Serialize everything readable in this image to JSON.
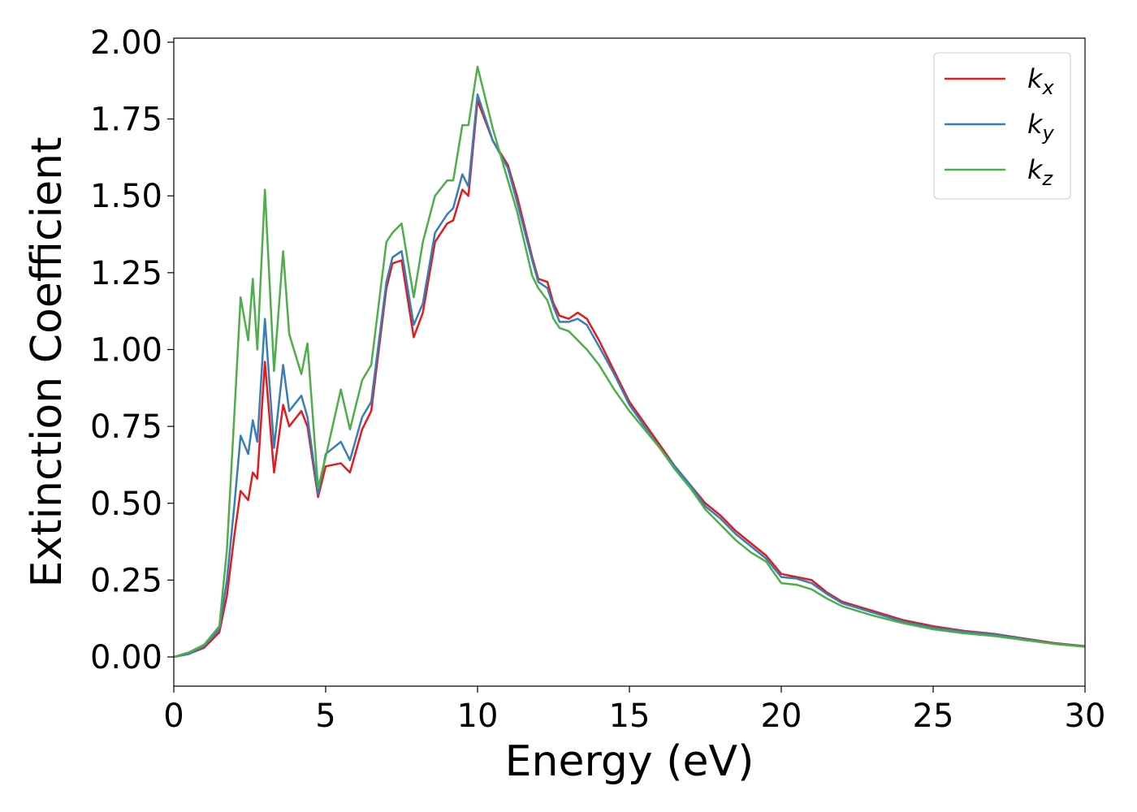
{
  "chart_data": {
    "type": "line",
    "x_label": "Energy (eV)",
    "y_label": "Extinction Coefficient",
    "x": [
      0,
      0.5,
      1,
      1.5,
      1.75,
      2,
      2.2,
      2.45,
      2.6,
      2.75,
      3,
      3.3,
      3.6,
      3.8,
      4.2,
      4.4,
      4.75,
      5,
      5.5,
      5.8,
      6.2,
      6.5,
      7,
      7.2,
      7.5,
      7.9,
      8.2,
      8.6,
      9,
      9.2,
      9.5,
      9.7,
      10,
      10.5,
      11,
      11.3,
      11.8,
      12,
      12.3,
      12.5,
      12.7,
      13,
      13.3,
      13.6,
      14,
      14.5,
      15,
      15.5,
      16,
      16.5,
      17,
      17.5,
      18,
      18.5,
      19,
      19.5,
      20,
      20.5,
      21,
      21.5,
      22,
      23,
      24,
      25,
      26,
      27,
      28,
      29,
      30
    ],
    "series": [
      {
        "name": "kx",
        "color": "#e41a1c",
        "values": [
          0,
          0.01,
          0.03,
          0.08,
          0.2,
          0.4,
          0.54,
          0.51,
          0.6,
          0.58,
          0.96,
          0.6,
          0.82,
          0.75,
          0.8,
          0.75,
          0.52,
          0.62,
          0.63,
          0.6,
          0.74,
          0.8,
          1.2,
          1.28,
          1.29,
          1.04,
          1.12,
          1.35,
          1.41,
          1.42,
          1.52,
          1.5,
          1.81,
          1.68,
          1.6,
          1.5,
          1.3,
          1.23,
          1.22,
          1.15,
          1.11,
          1.1,
          1.12,
          1.1,
          1.03,
          0.93,
          0.83,
          0.76,
          0.69,
          0.62,
          0.56,
          0.5,
          0.46,
          0.41,
          0.37,
          0.33,
          0.27,
          0.26,
          0.25,
          0.21,
          0.18,
          0.15,
          0.12,
          0.1,
          0.085,
          0.075,
          0.06,
          0.045,
          0.035
        ]
      },
      {
        "name": "ky",
        "color": "#377eb8",
        "values": [
          0,
          0.01,
          0.035,
          0.09,
          0.25,
          0.5,
          0.72,
          0.66,
          0.77,
          0.7,
          1.1,
          0.68,
          0.95,
          0.8,
          0.85,
          0.78,
          0.53,
          0.66,
          0.7,
          0.64,
          0.78,
          0.83,
          1.22,
          1.3,
          1.32,
          1.08,
          1.15,
          1.38,
          1.44,
          1.46,
          1.57,
          1.53,
          1.83,
          1.68,
          1.59,
          1.48,
          1.29,
          1.22,
          1.2,
          1.14,
          1.09,
          1.09,
          1.1,
          1.08,
          1.01,
          0.92,
          0.82,
          0.75,
          0.68,
          0.62,
          0.56,
          0.49,
          0.45,
          0.4,
          0.36,
          0.32,
          0.26,
          0.255,
          0.24,
          0.205,
          0.175,
          0.145,
          0.115,
          0.095,
          0.082,
          0.073,
          0.058,
          0.043,
          0.034
        ]
      },
      {
        "name": "kz",
        "color": "#4daf4a",
        "values": [
          0,
          0.015,
          0.04,
          0.1,
          0.35,
          0.8,
          1.17,
          1.03,
          1.23,
          1.0,
          1.52,
          0.93,
          1.32,
          1.05,
          0.92,
          1.02,
          0.55,
          0.65,
          0.87,
          0.74,
          0.9,
          0.95,
          1.35,
          1.38,
          1.41,
          1.17,
          1.35,
          1.5,
          1.55,
          1.55,
          1.73,
          1.73,
          1.92,
          1.72,
          1.55,
          1.45,
          1.24,
          1.2,
          1.16,
          1.1,
          1.07,
          1.06,
          1.03,
          1.0,
          0.95,
          0.87,
          0.8,
          0.74,
          0.68,
          0.61,
          0.55,
          0.48,
          0.43,
          0.38,
          0.34,
          0.31,
          0.24,
          0.235,
          0.22,
          0.19,
          0.165,
          0.135,
          0.11,
          0.09,
          0.077,
          0.068,
          0.055,
          0.042,
          0.033
        ]
      }
    ],
    "xlim": [
      0,
      30
    ],
    "xticks": [
      0,
      5,
      10,
      15,
      20,
      25,
      30
    ],
    "ylim": [
      -0.095,
      2.013
    ],
    "yticks": [
      {
        "value": 0,
        "label": "0.00"
      },
      {
        "value": 0.25,
        "label": "0.25"
      },
      {
        "value": 0.5,
        "label": "0.50"
      },
      {
        "value": 0.75,
        "label": "0.75"
      },
      {
        "value": 1,
        "label": "1.00"
      },
      {
        "value": 1.25,
        "label": "1.25"
      },
      {
        "value": 1.5,
        "label": "1.50"
      },
      {
        "value": 1.75,
        "label": "1.75"
      },
      {
        "value": 2,
        "label": "2.00"
      }
    ],
    "grid": false,
    "legend": "upper right"
  }
}
